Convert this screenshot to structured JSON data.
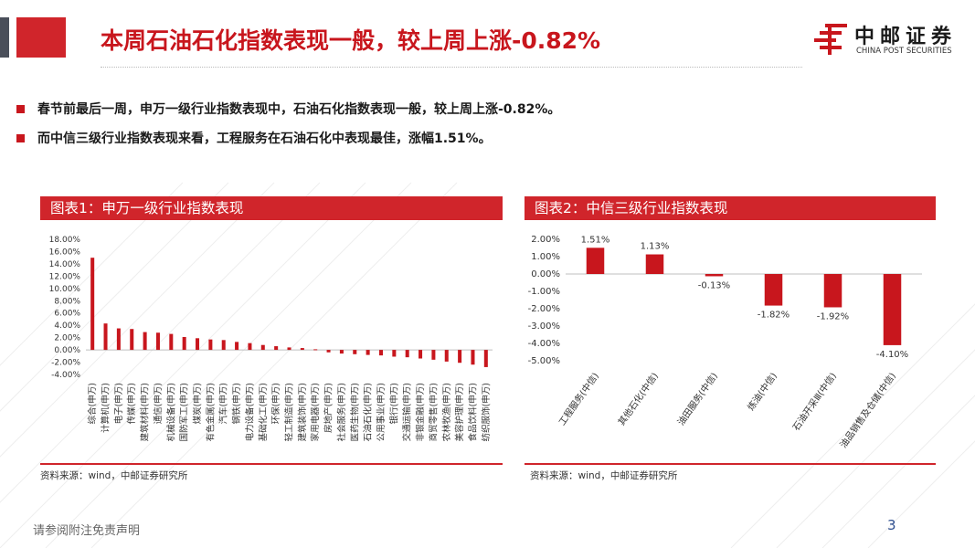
{
  "header": {
    "title": "本周石油石化指数表现一般，较上周上涨-0.82%",
    "logo_cn": "中邮证券",
    "logo_en": "CHINA POST SECURITIES",
    "accent_color": "#d0252b"
  },
  "bullets": [
    "春节前最后一周，申万一级行业指数表现中，石油石化指数表现一般，较上周上涨-0.82%。",
    "而中信三级行业指数表现来看，工程服务在石油石化中表现最佳，涨幅1.51%。"
  ],
  "panels": {
    "left_title": "图表1：申万一级行业指数表现",
    "right_title": "图表2：中信三级行业指数表现",
    "left_source": "资料来源：wind，中邮证券研究所",
    "right_source": "资料来源：wind，中邮证券研究所"
  },
  "footer": {
    "disclaimer": "请参阅附注免责声明",
    "page": "3"
  },
  "chart_data": [
    {
      "type": "bar",
      "categories": [
        "综合(申万)",
        "计算机(申万)",
        "电子(申万)",
        "传媒(申万)",
        "建筑材料(申万)",
        "通信(申万)",
        "机械设备(申万)",
        "国防军工(申万)",
        "煤炭(申万)",
        "有色金属(申万)",
        "汽车(申万)",
        "钢铁(申万)",
        "电力设备(申万)",
        "基础化工(申万)",
        "环保(申万)",
        "轻工制造(申万)",
        "建筑装饰(申万)",
        "家用电器(申万)",
        "房地产(申万)",
        "社会服务(申万)",
        "医药生物(申万)",
        "石油石化(申万)",
        "公用事业(申万)",
        "银行(申万)",
        "交通运输(申万)",
        "非银金融(申万)",
        "商贸零售(申万)",
        "农林牧渔(申万)",
        "美容护理(申万)",
        "食品饮料(申万)",
        "纺织服饰(申万)"
      ],
      "values": [
        15.0,
        4.3,
        3.5,
        3.4,
        2.9,
        2.8,
        2.6,
        2.1,
        1.9,
        1.7,
        1.6,
        1.3,
        1.1,
        0.8,
        0.6,
        0.4,
        0.3,
        0.1,
        -0.4,
        -0.6,
        -0.7,
        -0.82,
        -0.9,
        -1.1,
        -1.2,
        -1.4,
        -1.6,
        -1.9,
        -2.1,
        -2.4,
        -2.8
      ],
      "ylim": [
        -4,
        18
      ],
      "yticks": [
        "18.00%",
        "16.00%",
        "14.00%",
        "12.00%",
        "10.00%",
        "8.00%",
        "6.00%",
        "4.00%",
        "2.00%",
        "0.00%",
        "-2.00%",
        "-4.00%"
      ],
      "bar_color": "#c8161d",
      "grid": false
    },
    {
      "type": "bar",
      "categories": [
        "工程服务(中信)",
        "其他石化(中信)",
        "油田服务(中信)",
        "炼油(中信)",
        "石油开采Ⅲ(中信)",
        "油品销售及仓储(中信)"
      ],
      "values": [
        1.51,
        1.13,
        -0.13,
        -1.82,
        -1.92,
        -4.1
      ],
      "data_labels": [
        "1.51%",
        "1.13%",
        "-0.13%",
        "-1.82%",
        "-1.92%",
        "-4.10%"
      ],
      "ylim": [
        -5,
        2
      ],
      "yticks": [
        "2.00%",
        "1.00%",
        "0.00%",
        "-1.00%",
        "-2.00%",
        "-3.00%",
        "-4.00%",
        "-5.00%"
      ],
      "bar_color": "#c8161d",
      "grid": false
    }
  ]
}
